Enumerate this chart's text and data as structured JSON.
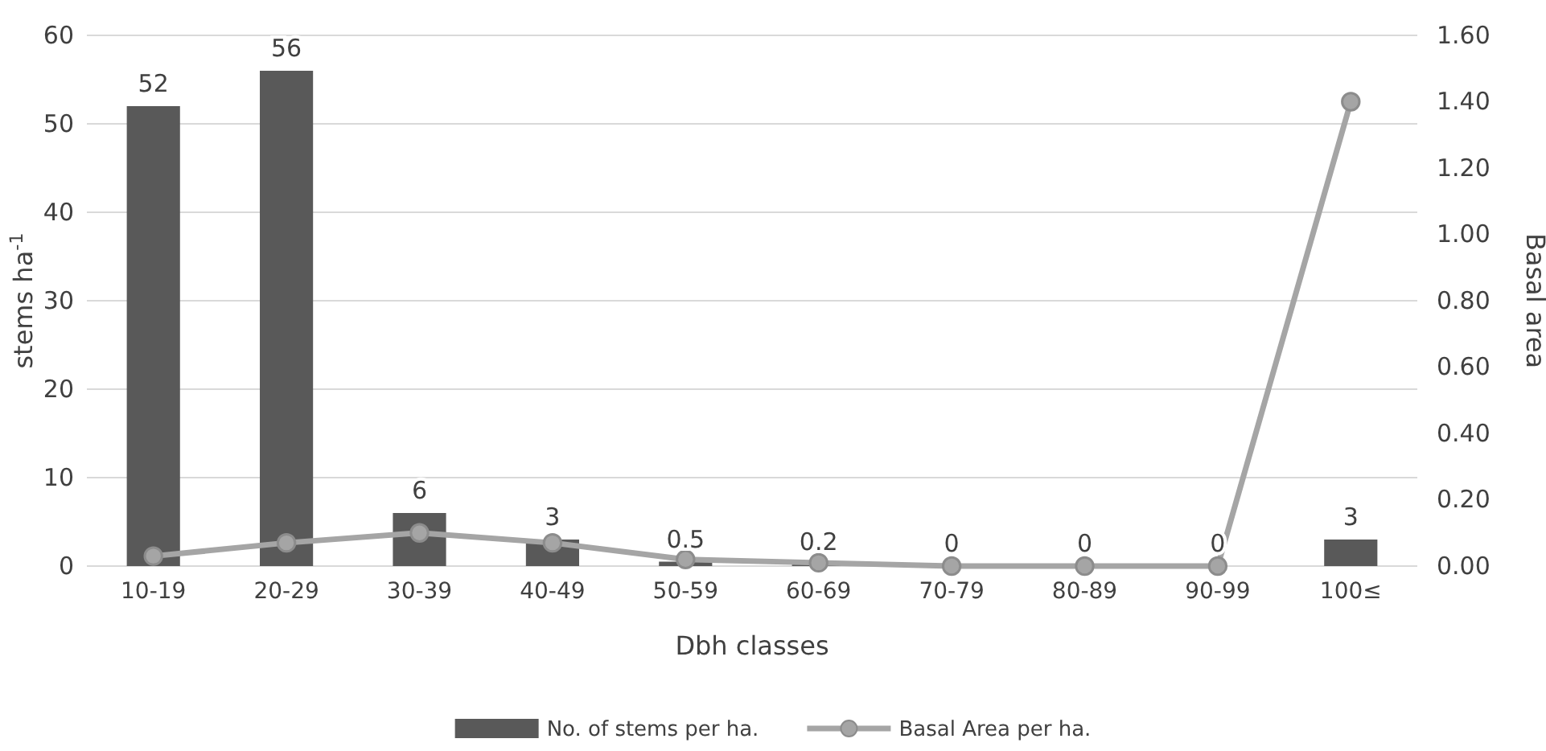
{
  "chart_data": {
    "type": "bar",
    "xlabel": "Dbh classes",
    "ylabel": "stems ha$^{-1}$",
    "y2label": "Basal area",
    "categories": [
      "10-19",
      "20-29",
      "30-39",
      "40-49",
      "50-59",
      "60-69",
      "70-79",
      "80-89",
      "90-99",
      "100≤"
    ],
    "series": [
      {
        "name": "No. of stems per ha.",
        "color": "#595959",
        "values": [
          52,
          56,
          6,
          3,
          0.5,
          0.2,
          0,
          0,
          0,
          3
        ],
        "value_labels": [
          "52",
          "56",
          "6",
          "3",
          "0.5",
          "0.2",
          "0",
          "0",
          "0",
          "3"
        ]
      },
      {
        "name": "Basal Area per ha.",
        "type": "line",
        "axis": "y2",
        "color": "#a5a5a5",
        "marker": "circle",
        "values": [
          0.03,
          0.07,
          0.1,
          0.07,
          0.02,
          0.01,
          0,
          0,
          0,
          1.4
        ]
      }
    ],
    "ylim": [
      0,
      60
    ],
    "yticks": [
      0,
      10,
      20,
      30,
      40,
      50,
      60
    ],
    "y2lim": [
      0,
      1.6
    ],
    "y2ticks": [
      {
        "value": 0,
        "label": "0.00"
      },
      {
        "value": 0.2,
        "label": "0.20"
      },
      {
        "value": 0.4,
        "label": "0.40"
      },
      {
        "value": 0.6,
        "label": "0.60"
      },
      {
        "value": 0.8,
        "label": "0.80"
      },
      {
        "value": 1,
        "label": "1.00"
      },
      {
        "value": 1.2,
        "label": "1.20"
      },
      {
        "value": 1.4,
        "label": "1.40"
      },
      {
        "value": 1.6,
        "label": "1.60"
      }
    ],
    "grid": "y",
    "legend": "bottom"
  }
}
